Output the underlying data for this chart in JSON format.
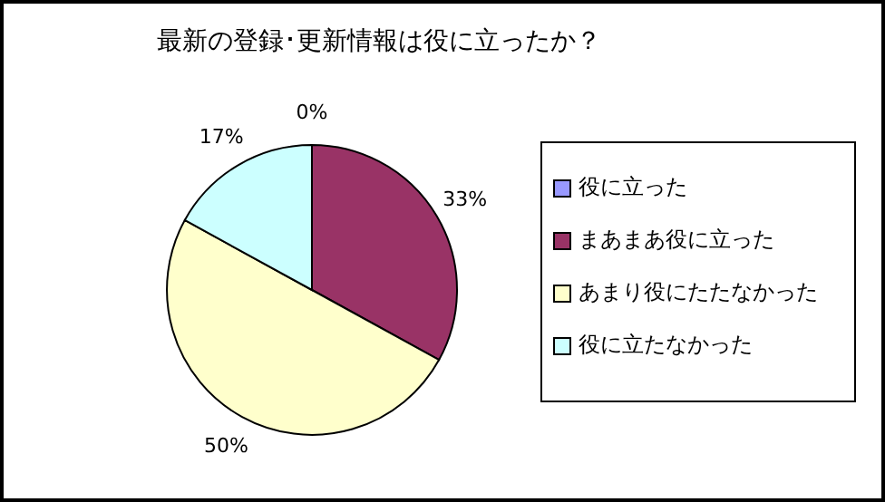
{
  "chart_data": {
    "type": "pie",
    "title": "最新の登録･更新情報は役に立ったか？",
    "categories": [
      "役に立った",
      "まあまあ役に立った",
      "あまり役にたたなかった",
      "役に立たなかった"
    ],
    "values": [
      0,
      33,
      50,
      17
    ],
    "value_labels": [
      "0%",
      "33%",
      "50%",
      "17%"
    ],
    "colors": [
      "#9999ff",
      "#993366",
      "#ffffcc",
      "#ccffff"
    ],
    "legend": "right"
  }
}
